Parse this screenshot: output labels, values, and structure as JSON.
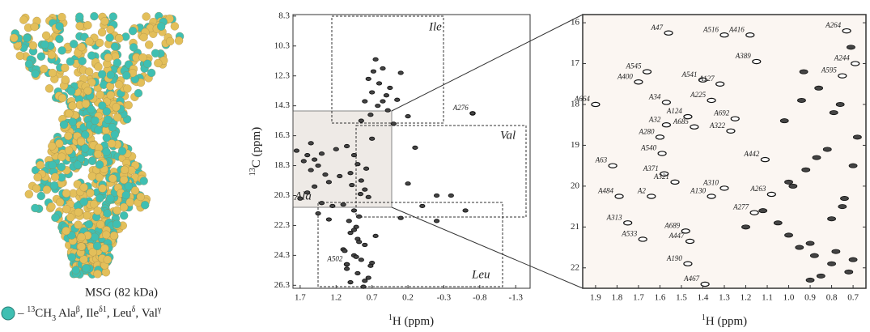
{
  "figure": {
    "left": {
      "caption": "MSG (82 kDa)",
      "legend": [
        {
          "text": "– "
        },
        {
          "text": "13",
          "sup": true
        },
        {
          "text": "CH"
        },
        {
          "text": "3",
          "sub": true
        },
        {
          "text": " Ala"
        },
        {
          "text": "β",
          "sup": true
        },
        {
          "text": ", Ile"
        },
        {
          "text": "δ1",
          "sup": true
        },
        {
          "text": ", Leu"
        },
        {
          "text": "δ",
          "sup": true
        },
        {
          "text": ", Val"
        },
        {
          "text": "γ",
          "sup": true
        }
      ]
    },
    "spectrum": {
      "xlabel": [
        {
          "text": "1",
          "sup": true
        },
        {
          "text": "H (ppm)"
        }
      ],
      "ylabel": [
        {
          "text": "13",
          "sup": true
        },
        {
          "text": "C (ppm)"
        }
      ],
      "xlim": [
        1.8,
        -1.5
      ],
      "ylim": [
        8.2,
        26.5
      ],
      "xticks": [
        1.7,
        1.2,
        0.7,
        0.2,
        -0.3,
        -0.8,
        -1.3
      ],
      "yticks": [
        8.3,
        10.3,
        12.3,
        14.3,
        16.3,
        18.3,
        20.3,
        22.3,
        24.3,
        26.3
      ],
      "regions": [
        "Ile",
        "Val",
        "Ala",
        "Leu"
      ],
      "assignments": [
        {
          "label": "A276",
          "x": -0.7,
          "y": 14.8
        },
        {
          "label": "A502",
          "x": 1.05,
          "y": 24.9
        }
      ],
      "peaks": {
        "x": [
          0.65,
          0.55,
          0.75,
          0.6,
          0.45,
          0.7,
          0.5,
          0.35,
          0.8,
          0.62,
          0.48,
          0.72,
          0.3,
          0.2,
          0.85,
          0.4,
          0.55,
          0.68,
          1.75,
          1.6,
          1.5,
          1.45,
          1.4,
          1.55,
          1.65,
          1.35,
          1.3,
          1.5,
          1.2,
          1.6,
          1.7,
          1.25,
          1.4,
          1.15,
          1.45,
          1.3,
          1.55,
          1.05,
          0.95,
          0.9,
          1.0,
          0.85,
          0.8,
          0.75,
          1.1,
          0.95,
          0.88,
          1.02,
          0.92,
          0.78,
          0.7,
          0.98,
          0.86,
          0.2,
          -0.2,
          -0.4,
          0.0,
          -0.6,
          -0.2,
          0.3,
          0.1,
          1.0,
          0.9,
          0.8,
          1.1,
          0.95,
          0.85,
          0.7,
          1.05,
          0.9,
          0.75,
          1.0,
          0.82,
          0.65,
          0.95,
          0.88,
          1.08,
          0.72,
          0.92,
          0.8
        ],
        "y": [
          11.2,
          11.8,
          12.5,
          12.8,
          13.1,
          13.4,
          13.6,
          13.9,
          14.0,
          14.3,
          14.6,
          14.9,
          12.1,
          15.0,
          15.3,
          15.5,
          14.0,
          12.0,
          17.3,
          17.6,
          17.9,
          18.3,
          17.5,
          18.6,
          18.0,
          18.9,
          19.4,
          19.7,
          17.2,
          20.1,
          20.5,
          21.0,
          20.8,
          19.0,
          21.5,
          21.9,
          16.8,
          17.0,
          17.6,
          18.2,
          18.8,
          19.3,
          19.9,
          20.4,
          20.9,
          21.3,
          21.7,
          22.0,
          22.4,
          18.5,
          16.5,
          19.6,
          20.2,
          19.5,
          20.3,
          20.3,
          21.0,
          21.3,
          22.0,
          21.8,
          17.1,
          22.8,
          23.2,
          23.6,
          23.9,
          24.3,
          24.6,
          24.8,
          25.2,
          25.5,
          25.8,
          26.1,
          26.4,
          23.0,
          22.6,
          23.4,
          24.0,
          25.0,
          24.4,
          26.0
        ]
      }
    },
    "zoom": {
      "xlabel": [
        {
          "text": "1",
          "sup": true
        },
        {
          "text": "H (ppm)"
        }
      ],
      "xlim": [
        1.96,
        0.64
      ],
      "ylim": [
        15.8,
        22.5
      ],
      "xticks": [
        1.9,
        1.8,
        1.7,
        1.6,
        1.5,
        1.4,
        1.3,
        1.2,
        1.1,
        {
          "value": 1,
          "label": "1.0"
        },
        0.9,
        0.8,
        0.7
      ],
      "yticks": [
        16,
        17,
        18,
        19,
        20,
        21,
        22
      ],
      "assignments": [
        {
          "label": "A47",
          "x": 1.56,
          "y": 16.25
        },
        {
          "label": "A516",
          "x": 1.3,
          "y": 16.3
        },
        {
          "label": "A416",
          "x": 1.18,
          "y": 16.3
        },
        {
          "label": "A264",
          "x": 0.73,
          "y": 16.2
        },
        {
          "label": "A389",
          "x": 1.15,
          "y": 16.95
        },
        {
          "label": "A244",
          "x": 0.69,
          "y": 17.0
        },
        {
          "label": "A595",
          "x": 0.75,
          "y": 17.3
        },
        {
          "label": "A545",
          "x": 1.66,
          "y": 17.2
        },
        {
          "label": "A541",
          "x": 1.4,
          "y": 17.4
        },
        {
          "label": "A400",
          "x": 1.7,
          "y": 17.45
        },
        {
          "label": "A127",
          "x": 1.32,
          "y": 17.5
        },
        {
          "label": "A34",
          "x": 1.57,
          "y": 17.95
        },
        {
          "label": "A225",
          "x": 1.36,
          "y": 17.9
        },
        {
          "label": "A664",
          "x": 1.9,
          "y": 18.0
        },
        {
          "label": "A124",
          "x": 1.47,
          "y": 18.3
        },
        {
          "label": "A32",
          "x": 1.57,
          "y": 18.5
        },
        {
          "label": "A692",
          "x": 1.25,
          "y": 18.35
        },
        {
          "label": "A685",
          "x": 1.44,
          "y": 18.55
        },
        {
          "label": "A322",
          "x": 1.27,
          "y": 18.65
        },
        {
          "label": "A280",
          "x": 1.6,
          "y": 18.8
        },
        {
          "label": "A540",
          "x": 1.59,
          "y": 19.2
        },
        {
          "label": "A442",
          "x": 1.11,
          "y": 19.35
        },
        {
          "label": "A63",
          "x": 1.82,
          "y": 19.5
        },
        {
          "label": "A371",
          "x": 1.58,
          "y": 19.7
        },
        {
          "label": "A321",
          "x": 1.53,
          "y": 19.9
        },
        {
          "label": "A310",
          "x": 1.3,
          "y": 20.05
        },
        {
          "label": "A263",
          "x": 1.08,
          "y": 20.2
        },
        {
          "label": "A484",
          "x": 1.79,
          "y": 20.25
        },
        {
          "label": "A2",
          "x": 1.64,
          "y": 20.25
        },
        {
          "label": "A130",
          "x": 1.36,
          "y": 20.25
        },
        {
          "label": "A277",
          "x": 1.16,
          "y": 20.65
        },
        {
          "label": "A313",
          "x": 1.75,
          "y": 20.9
        },
        {
          "label": "A689",
          "x": 1.48,
          "y": 21.1
        },
        {
          "label": "A447",
          "x": 1.46,
          "y": 21.35
        },
        {
          "label": "A533",
          "x": 1.68,
          "y": 21.3
        },
        {
          "label": "A190",
          "x": 1.47,
          "y": 21.9
        },
        {
          "label": "A467",
          "x": 1.39,
          "y": 22.4
        }
      ],
      "peaks": {
        "x": [
          0.95,
          0.88,
          0.8,
          0.72,
          1.0,
          0.9,
          0.78,
          0.7,
          1.05,
          0.85,
          0.75,
          0.98,
          0.92,
          0.82,
          0.68,
          1.02,
          0.94,
          0.86,
          0.76,
          0.7,
          1.12,
          1.2,
          0.9,
          0.8,
          0.74,
          1.0,
          0.87,
          0.79,
          0.93,
          0.71
        ],
        "y": [
          21.5,
          21.7,
          21.9,
          22.1,
          21.2,
          21.4,
          21.6,
          21.8,
          20.9,
          22.2,
          20.5,
          20.0,
          19.6,
          19.1,
          18.8,
          18.4,
          17.9,
          17.6,
          18.0,
          19.5,
          20.6,
          21.0,
          22.3,
          20.8,
          20.3,
          19.9,
          19.3,
          18.2,
          17.2,
          16.6
        ]
      }
    }
  }
}
